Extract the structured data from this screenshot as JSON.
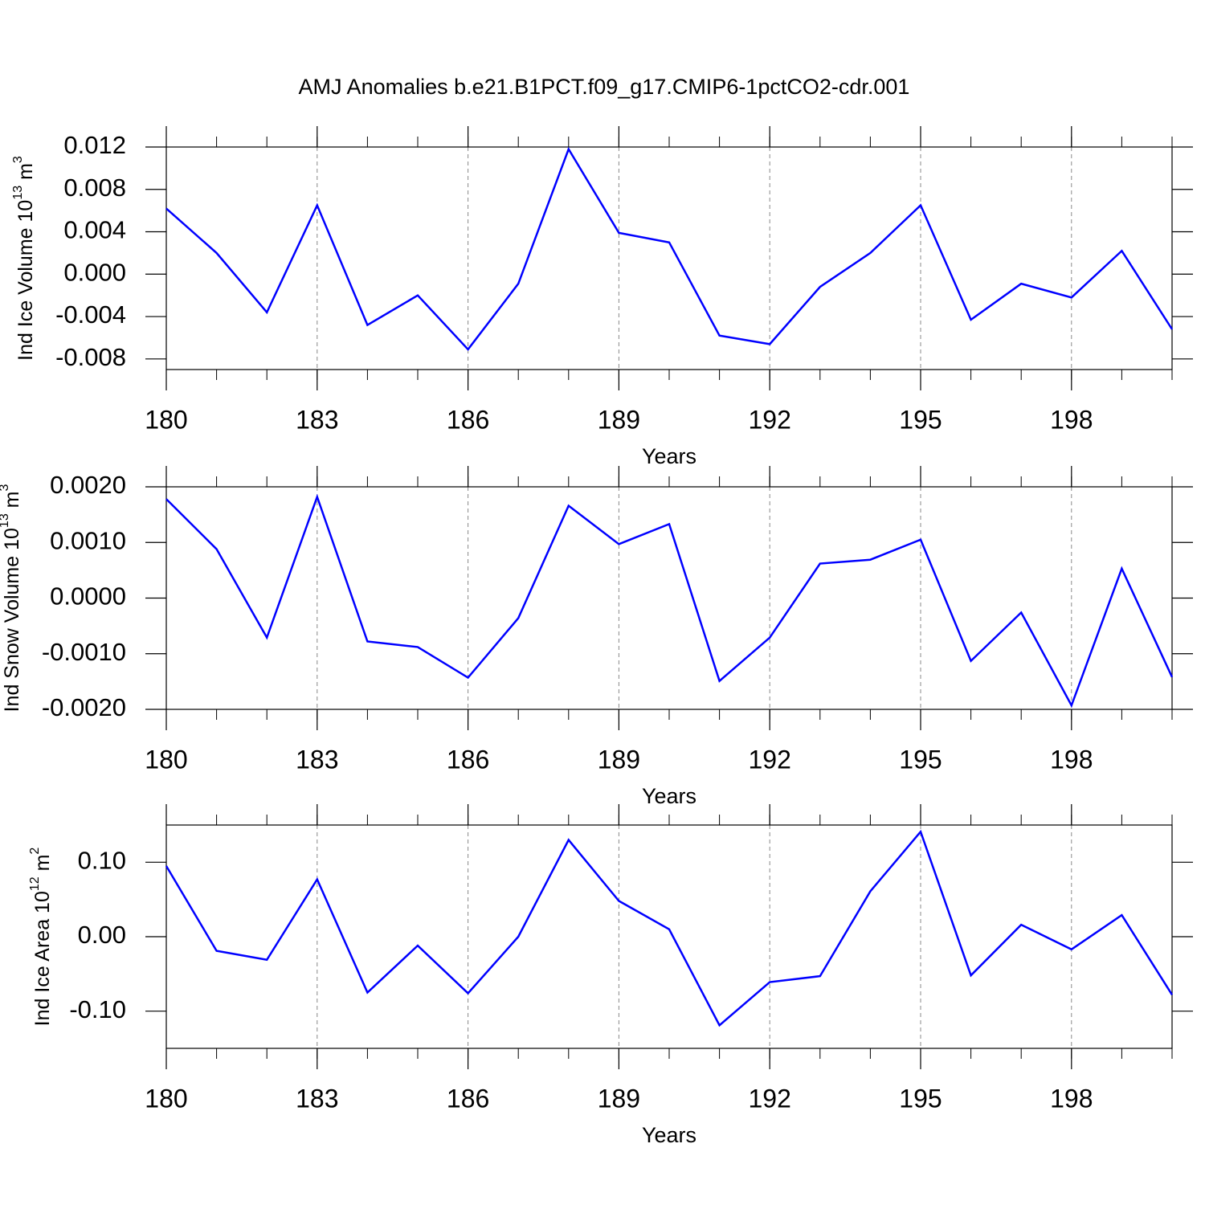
{
  "title": "AMJ Anomalies b.e21.B1PCT.f09_g17.CMIP6-1pctCO2-cdr.001",
  "chart_data": [
    {
      "type": "line",
      "ylabel": [
        "Ind Ice Volume 10",
        "13",
        " m",
        "3"
      ],
      "xlabel": "Years",
      "x": [
        180,
        181,
        182,
        183,
        184,
        185,
        186,
        187,
        188,
        189,
        190,
        191,
        192,
        193,
        194,
        195,
        196,
        197,
        198,
        199,
        200
      ],
      "values": [
        0.0062,
        0.002,
        -0.0036,
        0.0065,
        -0.0048,
        -0.002,
        -0.0071,
        -0.0009,
        0.0118,
        0.0039,
        0.003,
        -0.0058,
        -0.0066,
        -0.0012,
        0.002,
        0.0065,
        -0.0043,
        -0.0009,
        -0.0022,
        0.0022,
        -0.0052
      ],
      "color": "#0000ff",
      "xlim": [
        180,
        200
      ],
      "xticks": [
        180,
        183,
        186,
        189,
        192,
        195,
        198
      ],
      "ylim": [
        -0.009,
        0.012
      ],
      "yticks": [
        0.012,
        0.008,
        0.004,
        {
          "value": 0,
          "label": "0.000"
        },
        -0.004,
        -0.008
      ],
      "grid": "x"
    },
    {
      "type": "line",
      "ylabel": [
        "Ind Snow Volume 10",
        "13",
        " m",
        "3"
      ],
      "xlabel": "Years",
      "x": [
        180,
        181,
        182,
        183,
        184,
        185,
        186,
        187,
        188,
        189,
        190,
        191,
        192,
        193,
        194,
        195,
        196,
        197,
        198,
        199,
        200
      ],
      "values": [
        0.00178,
        0.00088,
        -0.00071,
        0.00182,
        -0.00078,
        -0.00088,
        -0.00143,
        -0.00036,
        0.00166,
        0.00097,
        0.00133,
        -0.00149,
        -0.00071,
        0.00062,
        0.00069,
        0.00105,
        -0.00113,
        -0.00026,
        -0.00193,
        0.00053,
        -0.00142
      ],
      "color": "#0000ff",
      "xlim": [
        180,
        200
      ],
      "xticks": [
        180,
        183,
        186,
        189,
        192,
        195,
        198
      ],
      "ylim": [
        -0.002,
        0.002
      ],
      "yticks": [
        {
          "value": 0.002,
          "label": "0.0020"
        },
        {
          "value": 0.001,
          "label": "0.0010"
        },
        {
          "value": 0,
          "label": "0.0000"
        },
        {
          "value": -0.001,
          "label": "-0.0010"
        },
        {
          "value": -0.002,
          "label": "-0.0020"
        }
      ],
      "grid": "x"
    },
    {
      "type": "line",
      "ylabel": [
        "Ind Ice Area 10",
        "12",
        " m",
        "2"
      ],
      "xlabel": "Years",
      "x": [
        180,
        181,
        182,
        183,
        184,
        185,
        186,
        187,
        188,
        189,
        190,
        191,
        192,
        193,
        194,
        195,
        196,
        197,
        198,
        199,
        200
      ],
      "values": [
        0.095,
        -0.019,
        -0.031,
        0.077,
        -0.075,
        -0.012,
        -0.076,
        0.0,
        0.13,
        0.048,
        0.01,
        -0.119,
        -0.061,
        -0.053,
        0.061,
        0.141,
        -0.052,
        0.016,
        -0.017,
        0.029,
        -0.078
      ],
      "color": "#0000ff",
      "xlim": [
        180,
        200
      ],
      "xticks": [
        180,
        183,
        186,
        189,
        192,
        195,
        198
      ],
      "ylim": [
        -0.15,
        0.15
      ],
      "yticks": [
        {
          "value": 0.1,
          "label": "0.10"
        },
        {
          "value": 0,
          "label": "0.00"
        },
        {
          "value": -0.1,
          "label": "-0.10"
        }
      ],
      "grid": "x"
    }
  ]
}
